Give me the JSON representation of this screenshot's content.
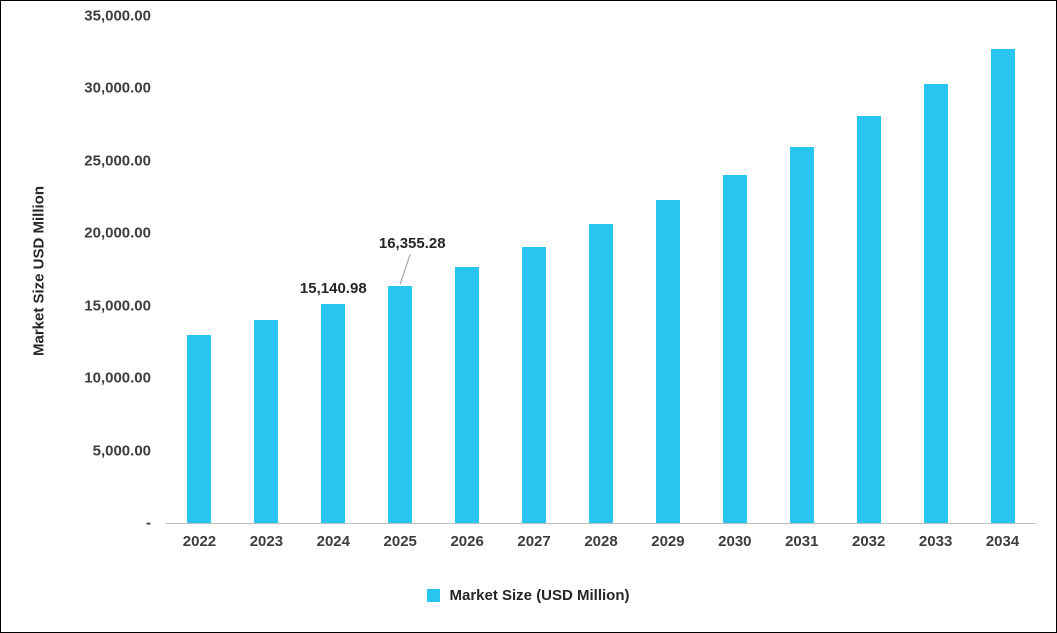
{
  "chart_data": {
    "type": "bar",
    "title": "",
    "xlabel": "",
    "ylabel": "Market Size USD Million",
    "ylim": [
      0,
      35000
    ],
    "grid": false,
    "legend_position": "bottom",
    "bar_color": "#29C5F1",
    "axis_line_color": "#bfbfbf",
    "leader_line_color": "#a6a6a6",
    "categories": [
      "2022",
      "2023",
      "2024",
      "2025",
      "2026",
      "2027",
      "2028",
      "2029",
      "2030",
      "2031",
      "2032",
      "2033",
      "2034"
    ],
    "series": [
      {
        "name": "Market Size (USD Million)",
        "values": [
          12975,
          14016,
          15140.98,
          16355.28,
          17667,
          19084,
          20615,
          22268,
          24054,
          25983,
          28067,
          30318,
          32750
        ]
      }
    ],
    "y_ticks": [
      {
        "value": 35000,
        "label": "35,000.00"
      },
      {
        "value": 30000,
        "label": "30,000.00"
      },
      {
        "value": 25000,
        "label": "25,000.00"
      },
      {
        "value": 20000,
        "label": "20,000.00"
      },
      {
        "value": 15000,
        "label": "15,000.00"
      },
      {
        "value": 10000,
        "label": "10,000.00"
      },
      {
        "value": 5000,
        "label": "5,000.00"
      },
      {
        "value": 0,
        "label": "-"
      }
    ],
    "annotations": [
      {
        "category": "2024",
        "text": "15,140.98",
        "leader": false
      },
      {
        "category": "2025",
        "text": "16,355.28",
        "leader": true
      }
    ]
  }
}
